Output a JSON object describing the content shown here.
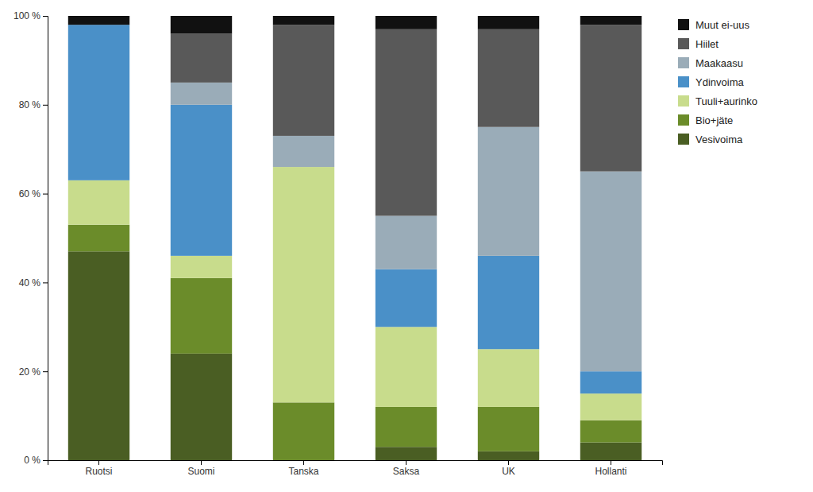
{
  "chart_data": {
    "type": "bar",
    "stacked": true,
    "grid": false,
    "legend": "right",
    "categories": [
      "Ruotsi",
      "Suomi",
      "Tanska",
      "Saksa",
      "UK",
      "Hollanti"
    ],
    "series": [
      {
        "name": "Vesivoima",
        "color": "#4a5e23",
        "values": [
          47,
          24,
          0,
          3,
          2,
          4
        ]
      },
      {
        "name": "Bio+jäte",
        "color": "#6b8c2a",
        "values": [
          6,
          17,
          13,
          9,
          10,
          5
        ]
      },
      {
        "name": "Tuuli+aurinko",
        "color": "#c8dc8c",
        "values": [
          10,
          5,
          53,
          18,
          13,
          6
        ]
      },
      {
        "name": "Ydinvoima",
        "color": "#4a90c8",
        "values": [
          35,
          34,
          0,
          13,
          21,
          5
        ]
      },
      {
        "name": "Maakaasu",
        "color": "#9aacb8",
        "values": [
          0,
          5,
          7,
          12,
          29,
          45
        ]
      },
      {
        "name": "Hiilet",
        "color": "#595959",
        "values": [
          0,
          11,
          25,
          42,
          22,
          33
        ]
      },
      {
        "name": "Muut ei-uus",
        "color": "#111111",
        "values": [
          2,
          4,
          2,
          3,
          3,
          2
        ]
      }
    ],
    "ylim": [
      0,
      100
    ],
    "yticks": [
      {
        "value": 0,
        "label": "0 %"
      },
      {
        "value": 20,
        "label": "20 %"
      },
      {
        "value": 40,
        "label": "40 %"
      },
      {
        "value": 60,
        "label": "60 %"
      },
      {
        "value": 80,
        "label": "80 %"
      },
      {
        "value": 100,
        "label": "100 %"
      }
    ]
  }
}
